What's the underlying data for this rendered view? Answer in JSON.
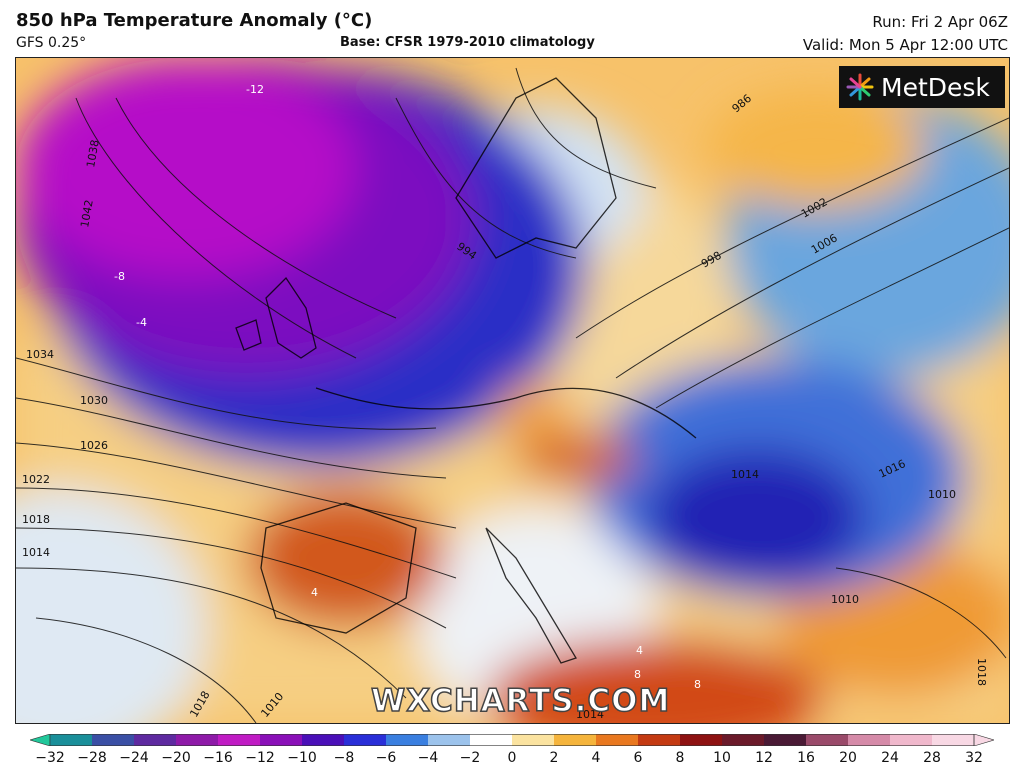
{
  "header": {
    "title": "850 hPa Temperature Anomaly (°C)",
    "model": "GFS 0.25°",
    "base": "Base: CFSR 1979-2010 climatology",
    "run": "Run: Fri 2 Apr 06Z",
    "valid": "Valid: Mon 5 Apr 12:00 UTC"
  },
  "branding": {
    "logo_text": "MetDesk",
    "watermark": "WXCHARTS.COM",
    "logo_icon": "starburst-icon"
  },
  "map": {
    "pressure_labels": [
      "1042",
      "1038",
      "1034",
      "1030",
      "1026",
      "1022",
      "1018",
      "1014",
      "1010",
      "1006",
      "1002",
      "998",
      "994",
      "986",
      "1014",
      "1016",
      "1018",
      "1010",
      "1014",
      "1010",
      "1018"
    ],
    "anomaly_labels": [
      "-12",
      "-8",
      "-4",
      "4",
      "4",
      "8",
      "8"
    ]
  },
  "colorbar": {
    "ticks": [
      "−32",
      "−28",
      "−24",
      "−20",
      "−16",
      "−12",
      "−10",
      "−8",
      "−6",
      "−4",
      "−2",
      "0",
      "2",
      "4",
      "6",
      "8",
      "10",
      "12",
      "16",
      "20",
      "24",
      "28",
      "32"
    ],
    "colors": [
      "#21c79a",
      "#1a8f9a",
      "#3a4fa5",
      "#5e2aa0",
      "#8e1aa8",
      "#c01bc4",
      "#8a10b8",
      "#4a0fb8",
      "#2a2fd8",
      "#3a7fe0",
      "#9cc3ec",
      "#ffffff",
      "#fbe3a0",
      "#f5b43c",
      "#e9781f",
      "#c43a12",
      "#8e1212",
      "#6b1a2a",
      "#4a1a35",
      "#9a4a6a",
      "#d58aa8",
      "#f0b8cc",
      "#f8d8e4"
    ]
  }
}
